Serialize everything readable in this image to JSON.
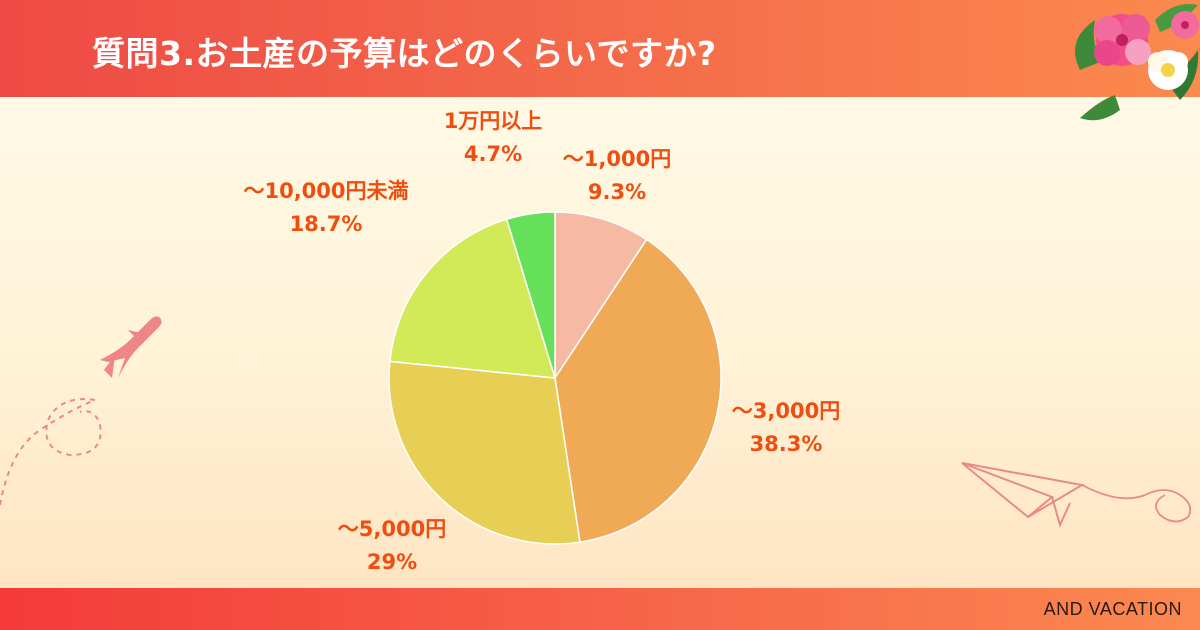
{
  "header": {
    "title": "質問3.お土産の予算はどのくらいですか?"
  },
  "footer": {
    "brand": "AND VACATION"
  },
  "colors": {
    "header_left": "#ee4a45",
    "header_right": "#fb8a4e",
    "label": "#f04e10",
    "deco_line": "#e98a8a"
  },
  "decorations": [
    "hibiscus-flowers",
    "airplane-icon",
    "paper-plane-icon",
    "dashed-flight-path"
  ],
  "chart_data": {
    "type": "pie",
    "title": "",
    "start": "top",
    "direction": "clockwise",
    "slices": [
      {
        "label": "〜1,000円",
        "value": 9.3,
        "display": "9.3%",
        "color": "#f6b9a4"
      },
      {
        "label": "〜3,000円",
        "value": 38.3,
        "display": "38.3%",
        "color": "#f0aa55"
      },
      {
        "label": "〜5,000円",
        "value": 29,
        "display": "29%",
        "color": "#e7cf55"
      },
      {
        "label": "〜10,000円未満",
        "value": 18.7,
        "display": "18.7%",
        "color": "#d3ea58"
      },
      {
        "label": "1万円以上",
        "value": 4.7,
        "display": "4.7%",
        "color": "#66e05a"
      }
    ]
  }
}
